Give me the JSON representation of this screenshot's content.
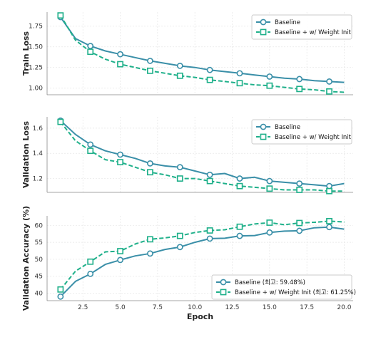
{
  "colors": {
    "baseline": "#3a8fa8",
    "weight_init": "#1fb08a"
  },
  "chart_data": [
    {
      "type": "line",
      "ylabel": "Train Loss",
      "xlabel": "",
      "xlim": [
        0.1,
        20.6
      ],
      "ylim": [
        0.92,
        1.92
      ],
      "xticks": [
        2.5,
        5.0,
        7.5,
        10.0,
        12.5,
        15.0,
        17.5,
        20.0
      ],
      "xtick_labels": [
        "",
        "",
        "",
        "",
        "",
        "",
        "",
        ""
      ],
      "yticks": [
        1.0,
        1.25,
        1.5,
        1.75
      ],
      "ytick_labels": [
        "1.00",
        "1.25",
        "1.50",
        "1.75"
      ],
      "legend": "top-right",
      "grid": true,
      "series": [
        {
          "name": "Baseline",
          "color": "#3a8fa8",
          "dashed": false,
          "marker": "circle",
          "x": [
            1,
            2,
            3,
            4,
            5,
            6,
            7,
            8,
            9,
            10,
            11,
            12,
            13,
            14,
            15,
            16,
            17,
            18,
            19,
            20
          ],
          "y": [
            1.86,
            1.6,
            1.51,
            1.45,
            1.41,
            1.37,
            1.33,
            1.3,
            1.27,
            1.25,
            1.22,
            1.2,
            1.18,
            1.16,
            1.14,
            1.12,
            1.11,
            1.09,
            1.08,
            1.07
          ]
        },
        {
          "name": "Baseline + w/ Weight Init",
          "color": "#1fb08a",
          "dashed": true,
          "marker": "square",
          "x": [
            1,
            2,
            3,
            4,
            5,
            6,
            7,
            8,
            9,
            10,
            11,
            12,
            13,
            14,
            15,
            16,
            17,
            18,
            19,
            20
          ],
          "y": [
            1.88,
            1.58,
            1.44,
            1.35,
            1.29,
            1.25,
            1.21,
            1.18,
            1.15,
            1.13,
            1.1,
            1.08,
            1.06,
            1.04,
            1.03,
            1.01,
            0.99,
            0.98,
            0.96,
            0.95
          ]
        }
      ]
    },
    {
      "type": "line",
      "ylabel": "Validation Loss",
      "xlabel": "",
      "xlim": [
        0.1,
        20.6
      ],
      "ylim": [
        1.09,
        1.69
      ],
      "xticks": [
        2.5,
        5.0,
        7.5,
        10.0,
        12.5,
        15.0,
        17.5,
        20.0
      ],
      "xtick_labels": [
        "",
        "",
        "",
        "",
        "",
        "",
        "",
        ""
      ],
      "yticks": [
        1.2,
        1.4,
        1.6
      ],
      "ytick_labels": [
        "1.2",
        "1.4",
        "1.6"
      ],
      "legend": "top-right",
      "grid": true,
      "series": [
        {
          "name": "Baseline",
          "color": "#3a8fa8",
          "dashed": false,
          "marker": "circle",
          "x": [
            1,
            2,
            3,
            4,
            5,
            6,
            7,
            8,
            9,
            10,
            11,
            12,
            13,
            14,
            15,
            16,
            17,
            18,
            19,
            20
          ],
          "y": [
            1.66,
            1.55,
            1.47,
            1.42,
            1.39,
            1.36,
            1.32,
            1.3,
            1.29,
            1.26,
            1.23,
            1.24,
            1.2,
            1.21,
            1.18,
            1.17,
            1.16,
            1.15,
            1.14,
            1.16
          ]
        },
        {
          "name": "Baseline + w/ Weight Init",
          "color": "#1fb08a",
          "dashed": true,
          "marker": "square",
          "x": [
            1,
            2,
            3,
            4,
            5,
            6,
            7,
            8,
            9,
            10,
            11,
            12,
            13,
            14,
            15,
            16,
            17,
            18,
            19,
            20
          ],
          "y": [
            1.65,
            1.5,
            1.42,
            1.35,
            1.33,
            1.29,
            1.25,
            1.23,
            1.2,
            1.2,
            1.18,
            1.16,
            1.14,
            1.13,
            1.12,
            1.11,
            1.11,
            1.11,
            1.1,
            1.1
          ]
        }
      ]
    },
    {
      "type": "line",
      "ylabel": "Validation Accuracy (%)",
      "xlabel": "Epoch",
      "xlim": [
        0.1,
        20.6
      ],
      "ylim": [
        37.8,
        62.8
      ],
      "xticks": [
        2.5,
        5.0,
        7.5,
        10.0,
        12.5,
        15.0,
        17.5,
        20.0
      ],
      "xtick_labels": [
        "2.5",
        "5.0",
        "7.5",
        "10.0",
        "12.5",
        "15.0",
        "17.5",
        "20.0"
      ],
      "yticks": [
        40,
        45,
        50,
        55,
        60
      ],
      "ytick_labels": [
        "40",
        "45",
        "50",
        "55",
        "60"
      ],
      "legend": "bottom-right",
      "grid": true,
      "series": [
        {
          "name": "Baseline (최고: 59.48%)",
          "color": "#3a8fa8",
          "dashed": false,
          "marker": "circle",
          "x": [
            1,
            2,
            3,
            4,
            5,
            6,
            7,
            8,
            9,
            10,
            11,
            12,
            13,
            14,
            15,
            16,
            17,
            18,
            19,
            20
          ],
          "y": [
            39.0,
            43.5,
            45.7,
            48.5,
            49.8,
            51.0,
            51.7,
            52.9,
            53.6,
            55.0,
            56.1,
            56.2,
            56.9,
            57.0,
            57.9,
            58.3,
            58.4,
            59.3,
            59.5,
            58.9
          ]
        },
        {
          "name": "Baseline + w/ Weight Init (최고: 61.25%)",
          "color": "#1fb08a",
          "dashed": true,
          "marker": "square",
          "x": [
            1,
            2,
            3,
            4,
            5,
            6,
            7,
            8,
            9,
            10,
            11,
            12,
            13,
            14,
            15,
            16,
            17,
            18,
            19,
            20
          ],
          "y": [
            41.1,
            46.5,
            49.3,
            52.2,
            52.4,
            54.5,
            55.9,
            56.3,
            56.9,
            57.9,
            58.5,
            58.7,
            59.6,
            60.4,
            60.8,
            60.2,
            60.7,
            60.9,
            61.25,
            61.0
          ]
        }
      ]
    }
  ]
}
